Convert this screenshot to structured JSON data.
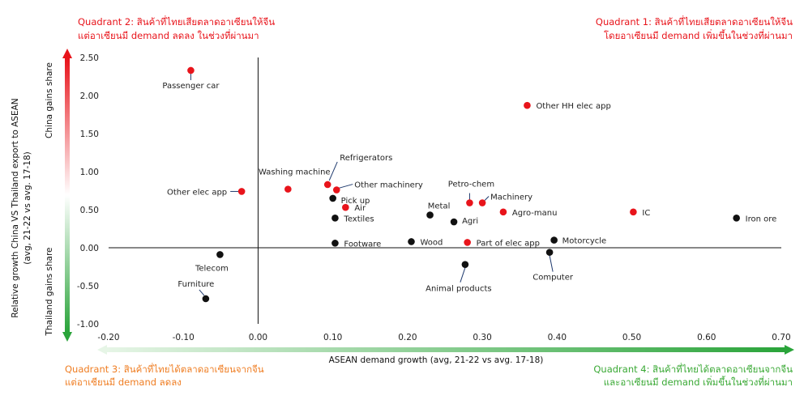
{
  "colors": {
    "red": "#e8141b",
    "orange": "#ef7d22",
    "green": "#3aa935",
    "point_red": "#e8141b",
    "point_black": "#111111"
  },
  "quadrants": {
    "q2_line1": "Quadrant 2: สินค้าที่ไทยเสียตลาดอาเซียนให้จีน",
    "q2_line2": "แต่อาเซียนมี demand ลดลง ในช่วงที่ผ่านมา",
    "q1_line1": "Quadrant 1: สินค้าที่ไทยเสียตลาดอาเซียนให้จีน",
    "q1_line2": "โดยอาเซียนมี demand เพิ่มขึ้นในช่วงที่ผ่านมา",
    "q3_line1": "Quadrant 3: สินค้าที่ไทยได้ตลาดอาเซียนจากจีน",
    "q3_line2": "แต่อาเซียนมี demand ลดลง",
    "q4_line1": "Quadrant 4: สินค้าที่ไทยได้ตลาดอาเซียนจากจีน",
    "q4_line2": "และอาเซียนมี demand เพิ่มขึ้นในช่วงที่ผ่านมา"
  },
  "side_labels": {
    "china_gains": "China gains share",
    "thailand_gains": "Thailand gains share"
  },
  "chart_data": {
    "type": "scatter",
    "title": "",
    "xlabel": "ASEAN demand growth (avg, 21-22 vs avg. 17-18)",
    "ylabel_line1": "Relative growth China VS Thailand export to ASEAN",
    "ylabel_line2": "(avg, 21-22 vs avg. 17-18)",
    "xlim": [
      -0.2,
      0.7
    ],
    "ylim": [
      -1.0,
      2.5
    ],
    "x_ticks": [
      -0.2,
      -0.1,
      0.0,
      0.1,
      0.2,
      0.3,
      0.4,
      0.5,
      0.6,
      0.7
    ],
    "x_tick_labels": [
      "-0.20",
      "-0.10",
      "0.00",
      "0.10",
      "0.20",
      "0.30",
      "0.40",
      "0.50",
      "0.60",
      "0.70"
    ],
    "y_ticks": [
      2.5,
      2.0,
      1.5,
      1.0,
      0.5,
      0.0,
      -0.5,
      -1.0
    ],
    "y_tick_labels": [
      "2.50",
      "2.00",
      "1.50",
      "1.00",
      "0.50",
      "0.00",
      "-0.50",
      "-1.00"
    ],
    "points": [
      {
        "name": "Passenger car",
        "x": -0.09,
        "y": 2.33,
        "color": "red"
      },
      {
        "name": "Other HH elec app",
        "x": 0.36,
        "y": 1.87,
        "color": "red"
      },
      {
        "name": "Refrigerators",
        "x": 0.093,
        "y": 0.83,
        "color": "red"
      },
      {
        "name": "Washing machine",
        "x": 0.04,
        "y": 0.77,
        "color": "red"
      },
      {
        "name": "Other machinery",
        "x": 0.105,
        "y": 0.76,
        "color": "red"
      },
      {
        "name": "Other elec app",
        "x": -0.022,
        "y": 0.74,
        "color": "red"
      },
      {
        "name": "Pick up",
        "x": 0.1,
        "y": 0.65,
        "color": "black"
      },
      {
        "name": "Air",
        "x": 0.117,
        "y": 0.53,
        "color": "red"
      },
      {
        "name": "Textiles",
        "x": 0.103,
        "y": 0.39,
        "color": "black"
      },
      {
        "name": "Petro-chem",
        "x": 0.283,
        "y": 0.59,
        "color": "red"
      },
      {
        "name": "Machinery",
        "x": 0.3,
        "y": 0.59,
        "color": "red"
      },
      {
        "name": "Agro-manu",
        "x": 0.328,
        "y": 0.47,
        "color": "red"
      },
      {
        "name": "Metal",
        "x": 0.23,
        "y": 0.43,
        "color": "black"
      },
      {
        "name": "Agri",
        "x": 0.262,
        "y": 0.34,
        "color": "black"
      },
      {
        "name": "IC",
        "x": 0.502,
        "y": 0.47,
        "color": "red"
      },
      {
        "name": "Iron ore",
        "x": 0.64,
        "y": 0.39,
        "color": "black"
      },
      {
        "name": "Footware",
        "x": 0.103,
        "y": 0.06,
        "color": "black"
      },
      {
        "name": "Wood",
        "x": 0.205,
        "y": 0.08,
        "color": "black"
      },
      {
        "name": "Part of elec app",
        "x": 0.28,
        "y": 0.07,
        "color": "red"
      },
      {
        "name": "Motorcycle",
        "x": 0.396,
        "y": 0.1,
        "color": "black"
      },
      {
        "name": "Computer",
        "x": 0.39,
        "y": -0.06,
        "color": "black"
      },
      {
        "name": "Animal products",
        "x": 0.277,
        "y": -0.22,
        "color": "black"
      },
      {
        "name": "Telecom",
        "x": -0.051,
        "y": -0.09,
        "color": "black"
      },
      {
        "name": "Furniture",
        "x": -0.07,
        "y": -0.67,
        "color": "black"
      }
    ]
  }
}
